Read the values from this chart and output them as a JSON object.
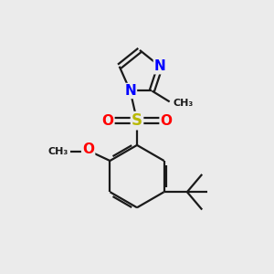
{
  "background_color": "#ebebeb",
  "bond_color": "#1a1a1a",
  "nitrogen_color": "#0000ff",
  "oxygen_color": "#ff0000",
  "sulfur_color": "#b8b800",
  "line_width": 1.6,
  "figsize": [
    3.0,
    3.0
  ],
  "dpi": 100,
  "xlim": [
    0,
    10
  ],
  "ylim": [
    0,
    10
  ]
}
